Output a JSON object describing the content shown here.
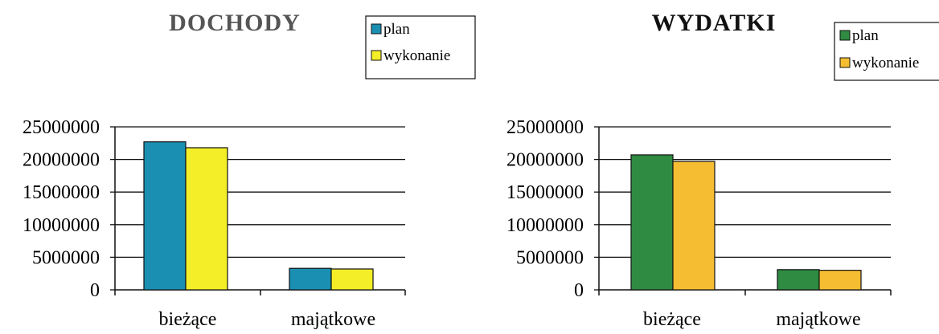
{
  "chart_data": [
    {
      "type": "bar",
      "title": "DOCHODY",
      "categories": [
        "bieżące",
        "majątkowe"
      ],
      "series": [
        {
          "name": "plan",
          "values": [
            22700000,
            3300000
          ],
          "color": "#1a8fb2"
        },
        {
          "name": "wykonanie",
          "values": [
            21800000,
            3200000
          ],
          "color": "#f4ee28"
        }
      ],
      "ylim": [
        0,
        25000000
      ],
      "yticks": [
        "0",
        "5000000",
        "10000000",
        "15000000",
        "20000000",
        "25000000"
      ],
      "grid": true,
      "legend": "top-right"
    },
    {
      "type": "bar",
      "title": "WYDATKI",
      "categories": [
        "bieżące",
        "majątkowe"
      ],
      "series": [
        {
          "name": "plan",
          "values": [
            20700000,
            3100000
          ],
          "color": "#2f8a42"
        },
        {
          "name": "wykonanie",
          "values": [
            19700000,
            3000000
          ],
          "color": "#f4bd32"
        }
      ],
      "ylim": [
        0,
        25000000
      ],
      "yticks": [
        "0",
        "5000000",
        "10000000",
        "15000000",
        "20000000",
        "25000000"
      ],
      "grid": true,
      "legend": "top-right"
    }
  ]
}
